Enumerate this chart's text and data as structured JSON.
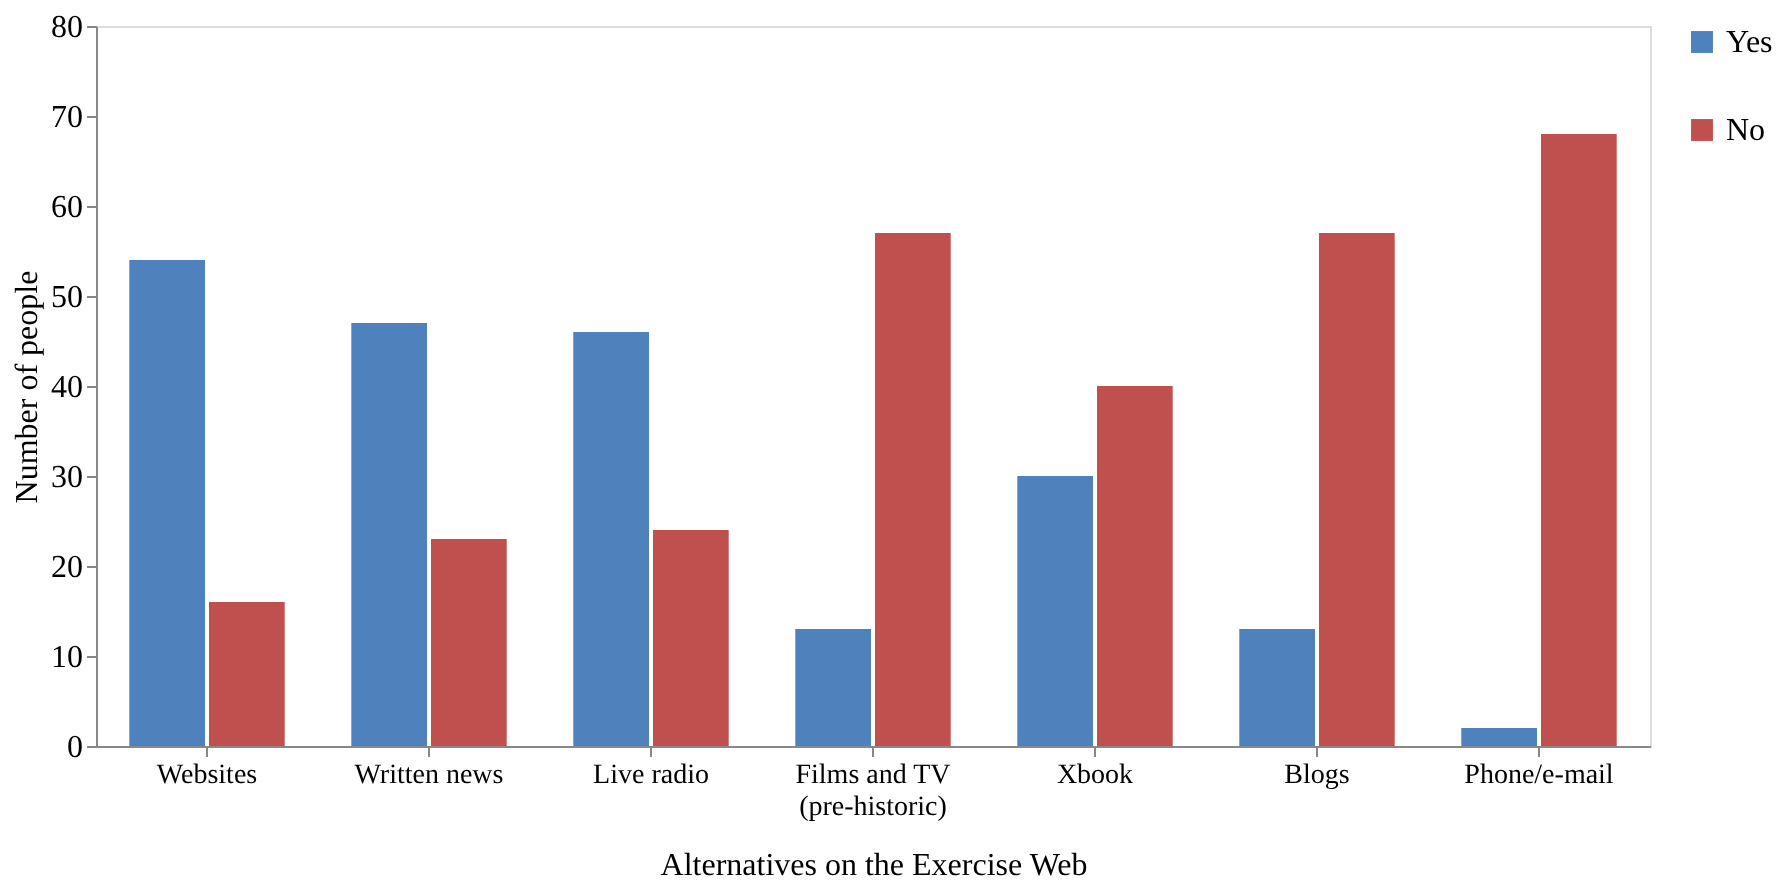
{
  "chart_data": {
    "type": "bar",
    "xlabel": "Alternatives on the Exercise Web",
    "ylabel": "Number of people",
    "categories": [
      "Websites",
      "Written news",
      "Live radio",
      "Films and TV\n(pre-historic)",
      "Xbook",
      "Blogs",
      "Phone/e-mail"
    ],
    "series": [
      {
        "name": "Yes",
        "color": "#4f81bd",
        "values": [
          54,
          47,
          46,
          13,
          30,
          13,
          2
        ]
      },
      {
        "name": "No",
        "color": "#c0504d",
        "values": [
          16,
          23,
          24,
          57,
          40,
          57,
          68
        ]
      }
    ],
    "ylim": [
      0,
      80
    ],
    "yticks": [
      0,
      10,
      20,
      30,
      40,
      50,
      60,
      70,
      80
    ],
    "grid": false,
    "legend": "right"
  }
}
